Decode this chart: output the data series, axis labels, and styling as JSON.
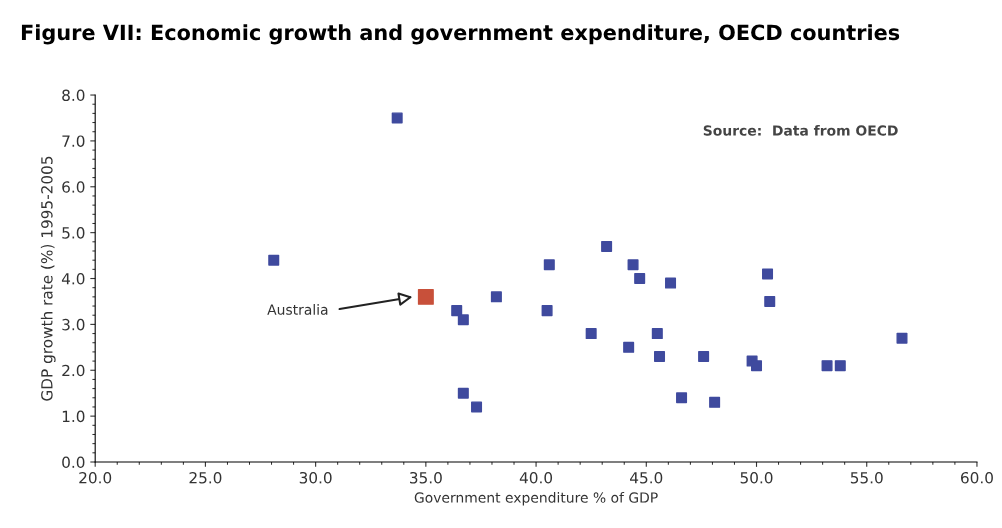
{
  "chart_data": {
    "type": "scatter",
    "title": "Figure VII: Economic growth and government expenditure, OECD countries",
    "xlabel": "Government expenditure % of GDP",
    "ylabel": "GDP growth rate (%) 1995-2005",
    "series": [
      {
        "color": "#3f4a9e",
        "x": [
          28.1,
          33.7,
          36.4,
          36.7,
          36.7,
          37.3,
          38.2,
          40.6,
          40.5,
          43.2,
          44.4,
          44.7,
          46.1,
          50.5,
          50.6,
          42.5,
          44.2,
          45.5,
          45.6,
          47.6,
          49.8,
          50.0,
          53.2,
          53.8,
          56.6,
          46.6,
          48.1
        ],
        "values": [
          4.4,
          7.5,
          3.3,
          3.1,
          1.5,
          1.2,
          3.6,
          4.3,
          3.3,
          4.7,
          4.3,
          4.0,
          3.9,
          4.1,
          3.5,
          2.8,
          2.5,
          2.8,
          2.3,
          2.3,
          2.2,
          2.1,
          2.1,
          2.1,
          2.7,
          1.4,
          1.3
        ]
      },
      {
        "color": "#c8503a",
        "x": [
          35.0
        ],
        "values": [
          3.6
        ]
      }
    ],
    "marker": "square",
    "grid": false,
    "legend": false,
    "xlim": [
      20,
      60
    ],
    "xticks": [
      {
        "value": 20,
        "label": "20.0"
      },
      {
        "value": 25,
        "label": "25.0"
      },
      {
        "value": 30,
        "label": "30.0"
      },
      {
        "value": 35,
        "label": "35.0"
      },
      {
        "value": 40,
        "label": "40.0"
      },
      {
        "value": 45,
        "label": "45.0"
      },
      {
        "value": 50,
        "label": "50.0"
      },
      {
        "value": 55,
        "label": "55.0"
      },
      {
        "value": 60,
        "label": "60.0"
      }
    ],
    "ylim": [
      0,
      8
    ],
    "yticks": [
      {
        "value": 0,
        "label": "0.0"
      },
      {
        "value": 1,
        "label": "1.0"
      },
      {
        "value": 2,
        "label": "2.0"
      },
      {
        "value": 3,
        "label": "3.0"
      },
      {
        "value": 4,
        "label": "4.0"
      },
      {
        "value": 5,
        "label": "5.0"
      },
      {
        "value": 6,
        "label": "6.0"
      },
      {
        "value": 7,
        "label": "7.0"
      },
      {
        "value": 8,
        "label": "8.0"
      }
    ],
    "annotations": [
      "Australia",
      "Source:  Data from OECD"
    ]
  }
}
